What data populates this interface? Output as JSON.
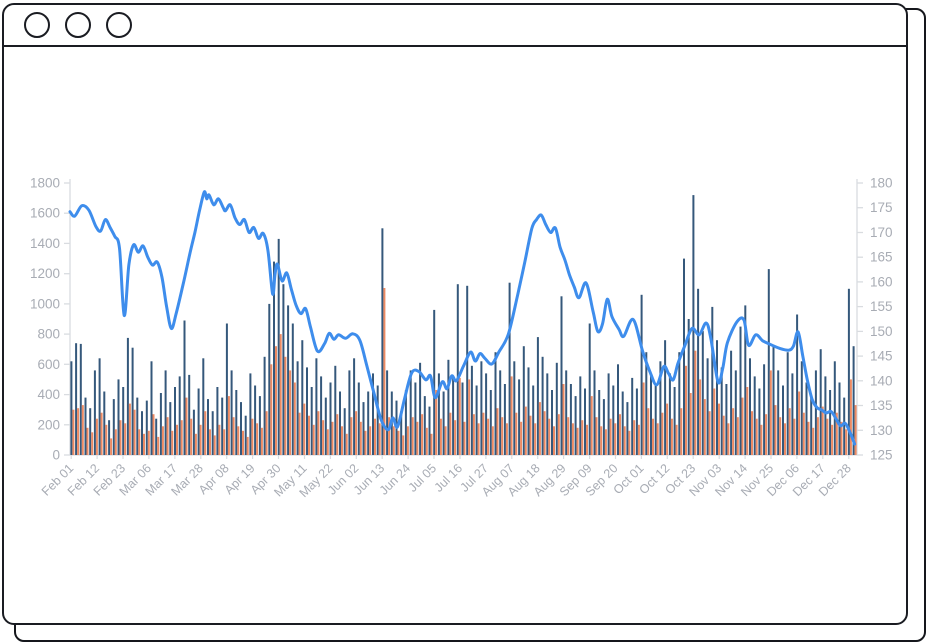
{
  "window": {
    "titlebar_icons": [
      "window-circle-button",
      "window-circle-button",
      "window-circle-button"
    ]
  },
  "colors": {
    "backdrop_blue": "#0d63e4",
    "window_border": "#1a1c22",
    "bar_navy": "#35587b",
    "bar_orange": "#ec8a63",
    "line_blue": "#3e8dec",
    "axis_line": "#d9dce0",
    "tick_label": "#a8acb4"
  },
  "chart_data": {
    "type": "mixed",
    "description": "Daily stock-style chart: two overlapped volume bar series (left axis) and a smooth price line (right axis).",
    "x_axis": {
      "tick_labels": [
        "Feb 01",
        "Feb 12",
        "Feb 23",
        "Mar 06",
        "Mar 17",
        "Mar 28",
        "Apr 08",
        "Apr 19",
        "Apr 30",
        "May 11",
        "May 22",
        "Jun 02",
        "Jun 13",
        "Jun 24",
        "Jul 05",
        "Jul 16",
        "Jul 27",
        "Aug 07",
        "Aug 18",
        "Aug 29",
        "Sep 09",
        "Sep 20",
        "Oct 01",
        "Oct 12",
        "Oct 23",
        "Nov 03",
        "Nov 14",
        "Nov 25",
        "Dec 06",
        "Dec 17",
        "Dec 28"
      ],
      "label_every_days": 11,
      "total_days": 334,
      "label_rotation_deg": 45
    },
    "left_axis": {
      "min": 0,
      "max": 1800,
      "step": 200,
      "tick_labels": [
        "0",
        "200",
        "400",
        "600",
        "800",
        "1000",
        "1200",
        "1400",
        "1600",
        "1800"
      ]
    },
    "right_axis": {
      "min": 125,
      "max": 180,
      "step": 5,
      "tick_labels": [
        "125",
        "130",
        "135",
        "140",
        "145",
        "150",
        "155",
        "160",
        "165",
        "170",
        "175",
        "180"
      ]
    },
    "grid": false,
    "legend": false,
    "series": [
      {
        "name": "volume-navy",
        "type": "bar",
        "y_axis": "left",
        "color": "#35587b",
        "sample_day_step": 2,
        "values": [
          620,
          740,
          735,
          380,
          310,
          560,
          640,
          420,
          230,
          370,
          500,
          450,
          775,
          710,
          380,
          290,
          360,
          620,
          240,
          410,
          560,
          350,
          450,
          520,
          890,
          530,
          300,
          440,
          640,
          370,
          290,
          450,
          380,
          870,
          560,
          430,
          350,
          260,
          540,
          460,
          390,
          650,
          1000,
          1280,
          1430,
          1130,
          990,
          870,
          620,
          760,
          580,
          450,
          640,
          520,
          380,
          480,
          590,
          420,
          310,
          560,
          640,
          480,
          350,
          420,
          540,
          460,
          1500,
          560,
          420,
          360,
          290,
          430,
          560,
          480,
          610,
          390,
          320,
          960,
          540,
          420,
          630,
          520,
          1130,
          480,
          1120,
          590,
          460,
          620,
          540,
          430,
          680,
          560,
          470,
          1140,
          620,
          500,
          720,
          580,
          460,
          780,
          650,
          540,
          430,
          610,
          1050,
          560,
          470,
          390,
          520,
          440,
          870,
          560,
          430,
          370,
          540,
          460,
          600,
          420,
          350,
          510,
          440,
          1060,
          680,
          540,
          460,
          620,
          760,
          540,
          450,
          680,
          1300,
          900,
          1720,
          1100,
          820,
          640,
          980,
          760,
          580,
          470,
          690,
          560,
          850,
          990,
          640,
          520,
          440,
          600,
          1230,
          720,
          560,
          460,
          680,
          540,
          930,
          620,
          480,
          390,
          560,
          700,
          520,
          430,
          620,
          480,
          380,
          1100,
          720
        ]
      },
      {
        "name": "volume-orange",
        "type": "bar",
        "y_axis": "left",
        "color": "#ec8a63",
        "sample_day_step": 2,
        "values": [
          300,
          310,
          330,
          180,
          150,
          240,
          280,
          200,
          110,
          170,
          230,
          210,
          340,
          300,
          170,
          140,
          160,
          270,
          120,
          190,
          250,
          160,
          200,
          230,
          380,
          240,
          140,
          200,
          290,
          170,
          130,
          200,
          170,
          390,
          250,
          190,
          160,
          120,
          240,
          210,
          180,
          290,
          600,
          720,
          800,
          650,
          560,
          480,
          280,
          340,
          260,
          200,
          290,
          230,
          170,
          220,
          270,
          190,
          140,
          250,
          290,
          220,
          160,
          190,
          240,
          210,
          1105,
          250,
          190,
          160,
          130,
          190,
          250,
          220,
          270,
          180,
          140,
          430,
          240,
          190,
          280,
          230,
          510,
          220,
          500,
          270,
          210,
          280,
          240,
          190,
          310,
          250,
          210,
          520,
          280,
          220,
          320,
          260,
          210,
          350,
          290,
          240,
          190,
          270,
          470,
          250,
          210,
          180,
          230,
          200,
          390,
          250,
          190,
          170,
          240,
          210,
          270,
          190,
          160,
          230,
          200,
          480,
          310,
          240,
          210,
          280,
          340,
          240,
          200,
          310,
          590,
          410,
          690,
          500,
          370,
          290,
          440,
          340,
          260,
          210,
          310,
          250,
          380,
          450,
          290,
          240,
          200,
          270,
          560,
          330,
          250,
          210,
          310,
          240,
          420,
          280,
          220,
          180,
          250,
          320,
          240,
          200,
          280,
          220,
          170,
          500,
          330
        ]
      },
      {
        "name": "price-line",
        "type": "line",
        "y_axis": "right",
        "color": "#3e8dec",
        "points": [
          [
            0,
            174.2
          ],
          [
            2,
            173.3
          ],
          [
            5,
            175.4
          ],
          [
            8,
            174.5
          ],
          [
            11,
            171.2
          ],
          [
            13,
            170.3
          ],
          [
            15,
            172.6
          ],
          [
            17,
            171.0
          ],
          [
            19,
            169.2
          ],
          [
            21,
            166.8
          ],
          [
            23,
            153.2
          ],
          [
            25,
            163.5
          ],
          [
            27,
            167.5
          ],
          [
            29,
            166.0
          ],
          [
            31,
            167.3
          ],
          [
            33,
            165.0
          ],
          [
            35,
            163.4
          ],
          [
            37,
            164.0
          ],
          [
            39,
            161.0
          ],
          [
            41,
            155.0
          ],
          [
            43,
            150.6
          ],
          [
            45,
            153.5
          ],
          [
            48,
            159.5
          ],
          [
            51,
            166.0
          ],
          [
            53,
            170.0
          ],
          [
            55,
            174.5
          ],
          [
            57,
            178.2
          ],
          [
            58,
            176.8
          ],
          [
            59,
            177.6
          ],
          [
            61,
            175.6
          ],
          [
            63,
            176.8
          ],
          [
            65,
            175.0
          ],
          [
            66,
            174.4
          ],
          [
            68,
            175.6
          ],
          [
            70,
            173.0
          ],
          [
            72,
            171.6
          ],
          [
            74,
            172.6
          ],
          [
            76,
            170.0
          ],
          [
            78,
            171.0
          ],
          [
            80,
            168.8
          ],
          [
            82,
            169.8
          ],
          [
            84,
            166.4
          ],
          [
            86,
            157.6
          ],
          [
            87,
            161.5
          ],
          [
            88,
            163.6
          ],
          [
            90,
            160.2
          ],
          [
            92,
            161.8
          ],
          [
            94,
            158.4
          ],
          [
            96,
            155.2
          ],
          [
            98,
            153.6
          ],
          [
            100,
            154.6
          ],
          [
            102,
            151.0
          ],
          [
            105,
            146.0
          ],
          [
            108,
            147.5
          ],
          [
            110,
            149.6
          ],
          [
            112,
            148.4
          ],
          [
            114,
            149.3
          ],
          [
            117,
            148.6
          ],
          [
            120,
            149.5
          ],
          [
            123,
            148.2
          ],
          [
            126,
            143.0
          ],
          [
            129,
            137.5
          ],
          [
            132,
            132.2
          ],
          [
            135,
            130.1
          ],
          [
            137,
            132.5
          ],
          [
            139,
            130.7
          ],
          [
            142,
            136.4
          ],
          [
            145,
            141.6
          ],
          [
            148,
            141.9
          ],
          [
            151,
            140.2
          ],
          [
            153,
            141.0
          ],
          [
            155,
            136.6
          ],
          [
            158,
            139.8
          ],
          [
            160,
            138.4
          ],
          [
            162,
            141.0
          ],
          [
            164,
            140.0
          ],
          [
            167,
            143.0
          ],
          [
            170,
            145.8
          ],
          [
            172,
            144.0
          ],
          [
            174,
            145.5
          ],
          [
            176,
            144.6
          ],
          [
            179,
            143.4
          ],
          [
            182,
            145.8
          ],
          [
            186,
            149.4
          ],
          [
            190,
            157.4
          ],
          [
            193,
            164.0
          ],
          [
            196,
            170.8
          ],
          [
            198,
            172.6
          ],
          [
            200,
            173.5
          ],
          [
            202,
            171.5
          ],
          [
            204,
            170.0
          ],
          [
            206,
            170.9
          ],
          [
            208,
            167.0
          ],
          [
            210,
            164.5
          ],
          [
            212,
            161.4
          ],
          [
            214,
            159.0
          ],
          [
            216,
            156.8
          ],
          [
            219,
            159.8
          ],
          [
            222,
            154.0
          ],
          [
            224,
            150.0
          ],
          [
            226,
            151.5
          ],
          [
            228,
            156.5
          ],
          [
            230,
            153.0
          ],
          [
            233,
            150.4
          ],
          [
            235,
            149.0
          ],
          [
            239,
            152.4
          ],
          [
            243,
            146.0
          ],
          [
            246,
            142.0
          ],
          [
            249,
            139.2
          ],
          [
            252,
            142.9
          ],
          [
            254,
            141.5
          ],
          [
            256,
            140.2
          ],
          [
            258,
            143.5
          ],
          [
            261,
            147.2
          ],
          [
            264,
            150.6
          ],
          [
            267,
            149.3
          ],
          [
            270,
            151.7
          ],
          [
            272,
            148.5
          ],
          [
            275,
            139.8
          ],
          [
            277,
            142.5
          ],
          [
            279,
            147.7
          ],
          [
            283,
            151.9
          ],
          [
            286,
            152.3
          ],
          [
            288,
            147.2
          ],
          [
            291,
            149.3
          ],
          [
            294,
            148.1
          ],
          [
            297,
            147.4
          ],
          [
            301,
            146.6
          ],
          [
            305,
            146.2
          ],
          [
            307,
            147.0
          ],
          [
            309,
            149.9
          ],
          [
            311,
            145.0
          ],
          [
            313,
            140.0
          ],
          [
            315,
            136.2
          ],
          [
            317,
            134.6
          ],
          [
            319,
            134.1
          ],
          [
            321,
            133.5
          ],
          [
            323,
            133.8
          ],
          [
            325,
            132.4
          ],
          [
            327,
            130.9
          ],
          [
            329,
            131.4
          ],
          [
            331,
            129.6
          ],
          [
            333,
            127.2
          ]
        ]
      }
    ]
  }
}
